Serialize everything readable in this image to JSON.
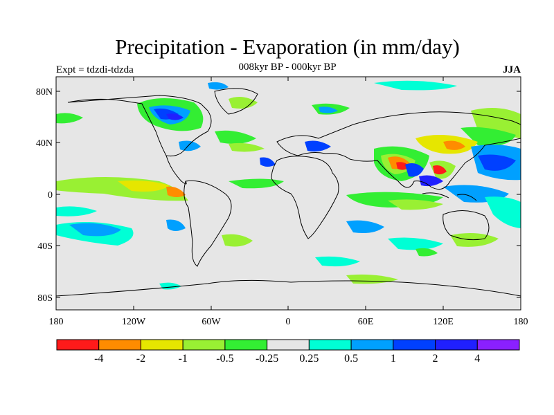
{
  "map": {
    "title": "Precipitation - Evaporation (in mm/day)",
    "experiment": "Expt = tdzdi-tdzda",
    "period": "008kyr BP - 000kyr BP",
    "season": "JJA",
    "projection": "cylindrical equidistant",
    "lat_ticks": [
      "80N",
      "40N",
      "0",
      "40S",
      "80S"
    ],
    "lon_ticks": [
      "180",
      "120W",
      "60W",
      "0",
      "60E",
      "120E",
      "180"
    ],
    "background_color": "#e6e6e6"
  },
  "colorbar": {
    "colors": [
      "#ff1a1a",
      "#ff8c00",
      "#e6e600",
      "#99f033",
      "#33ee33",
      "#e6e6e6",
      "#00ffd5",
      "#00a0ff",
      "#0040ff",
      "#2020ff",
      "#8a20ff"
    ],
    "labels": [
      "-4",
      "-2",
      "-1",
      "-0.5",
      "-0.25",
      "0.25",
      "0.5",
      "1",
      "2",
      "4"
    ]
  }
}
